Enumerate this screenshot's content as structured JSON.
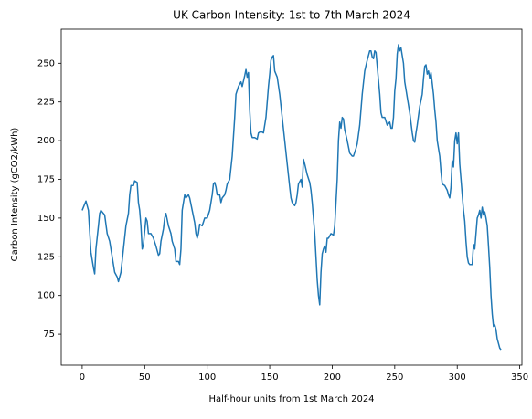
{
  "chart_data": {
    "type": "line",
    "title": "UK Carbon Intensity: 1st to 7th March 2024",
    "xlabel": "Half-hour units from 1st March 2024",
    "ylabel": "Carbon Intensity (gCO2/kWh)",
    "xlim": [
      -16.75,
      351.75
    ],
    "ylim": [
      55,
      272
    ],
    "xticks": [
      0,
      50,
      100,
      150,
      200,
      250,
      300,
      350
    ],
    "yticks": [
      75,
      100,
      125,
      150,
      175,
      200,
      225,
      250
    ],
    "series": [
      {
        "color": "#1f77b4",
        "x": [
          0,
          3,
          5,
          7,
          9,
          10,
          11,
          13,
          14,
          15,
          18,
          20,
          22,
          24,
          26,
          28,
          29,
          31,
          33,
          35,
          37,
          38,
          39,
          41,
          42,
          44,
          45,
          46,
          47,
          48,
          49,
          51,
          52,
          53,
          55,
          57,
          59,
          61,
          62,
          63,
          65,
          66,
          67,
          69,
          71,
          72,
          74,
          75,
          77,
          78,
          79,
          80,
          82,
          83,
          85,
          86,
          88,
          90,
          91,
          92,
          93,
          94,
          96,
          98,
          100,
          102,
          104,
          105,
          106,
          107,
          108,
          110,
          111,
          112,
          114,
          115,
          116,
          118,
          120,
          122,
          123,
          125,
          127,
          128,
          130,
          131,
          132,
          133,
          134,
          135,
          136,
          138,
          140,
          141,
          143,
          145,
          146,
          147,
          149,
          150,
          151,
          152,
          153,
          154,
          156,
          158,
          160,
          162,
          164,
          166,
          167,
          168,
          170,
          171,
          172,
          173,
          175,
          176,
          177,
          178,
          180,
          182,
          183,
          184,
          186,
          187,
          188,
          189,
          190,
          191,
          192,
          193,
          194,
          195,
          196,
          197,
          199,
          201,
          202,
          203,
          204,
          205,
          206,
          207,
          208,
          209,
          210,
          212,
          214,
          216,
          217,
          219,
          220,
          222,
          224,
          226,
          228,
          229,
          230,
          231,
          232,
          233,
          234,
          235,
          236,
          238,
          239,
          240,
          242,
          244,
          246,
          247,
          248,
          249,
          250,
          251,
          252,
          253,
          254,
          255,
          256,
          257,
          258,
          260,
          262,
          264,
          265,
          266,
          267,
          268,
          270,
          272,
          273,
          274,
          275,
          276,
          277,
          278,
          279,
          281,
          282,
          283,
          284,
          286,
          287,
          288,
          290,
          292,
          293,
          294,
          295,
          296,
          297,
          298,
          299,
          300,
          301,
          302,
          303,
          304,
          305,
          306,
          307,
          308,
          309,
          310,
          312,
          313,
          314,
          315,
          316,
          317,
          318,
          319,
          320,
          321,
          322,
          323,
          324,
          325,
          326,
          327,
          328,
          329,
          330,
          331,
          332,
          334,
          335
        ],
        "values": [
          155,
          161,
          155,
          128,
          118,
          114,
          130,
          145,
          153,
          155,
          152,
          140,
          135,
          125,
          115,
          112,
          109,
          115,
          130,
          145,
          153,
          165,
          171,
          171,
          174,
          173,
          160,
          155,
          145,
          130,
          133,
          150,
          148,
          140,
          140,
          137,
          132,
          126,
          127,
          135,
          143,
          150,
          153,
          145,
          140,
          135,
          130,
          122,
          122,
          120,
          130,
          155,
          165,
          163,
          165,
          163,
          155,
          147,
          140,
          137,
          140,
          146,
          145,
          150,
          150,
          155,
          165,
          172,
          173,
          170,
          165,
          165,
          160,
          163,
          165,
          168,
          172,
          175,
          190,
          215,
          230,
          235,
          238,
          235,
          242,
          246,
          241,
          244,
          220,
          205,
          202,
          202,
          201,
          205,
          206,
          205,
          210,
          215,
          235,
          243,
          252,
          254,
          255,
          245,
          241,
          230,
          215,
          200,
          185,
          170,
          163,
          160,
          158,
          160,
          165,
          172,
          175,
          170,
          188,
          185,
          178,
          173,
          168,
          160,
          140,
          125,
          110,
          100,
          94,
          115,
          127,
          130,
          132,
          128,
          137,
          137,
          140,
          139,
          145,
          160,
          175,
          200,
          212,
          208,
          215,
          214,
          207,
          200,
          192,
          190,
          190,
          195,
          198,
          210,
          230,
          245,
          252,
          255,
          258,
          258,
          254,
          253,
          258,
          257,
          248,
          230,
          218,
          215,
          215,
          210,
          212,
          208,
          208,
          215,
          232,
          240,
          256,
          262,
          258,
          260,
          255,
          250,
          238,
          228,
          218,
          205,
          200,
          199,
          205,
          210,
          222,
          230,
          240,
          248,
          249,
          243,
          245,
          240,
          244,
          230,
          220,
          212,
          200,
          190,
          180,
          172,
          171,
          168,
          165,
          163,
          170,
          187,
          183,
          200,
          205,
          198,
          205,
          185,
          175,
          165,
          155,
          148,
          135,
          125,
          121,
          120,
          120,
          133,
          130,
          140,
          150,
          152,
          155,
          150,
          157,
          152,
          154,
          150,
          145,
          132,
          118,
          100,
          88,
          80,
          81,
          78,
          72,
          66,
          65
        ]
      }
    ]
  }
}
